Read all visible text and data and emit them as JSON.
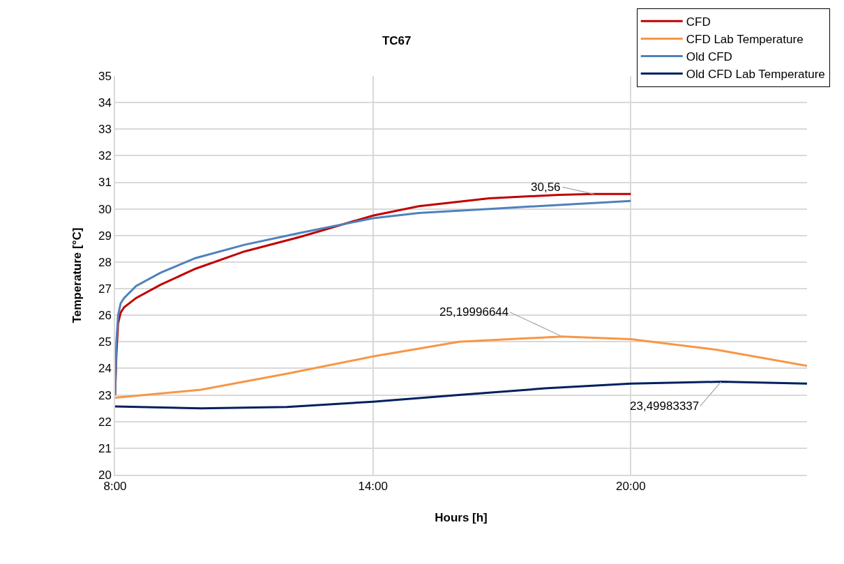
{
  "chart_data": {
    "type": "line",
    "title": "TC67",
    "xlabel": "Hours [h]",
    "ylabel": "Temperature [°C]",
    "xlim": [
      8,
      24.1
    ],
    "xticks": [
      {
        "value": 8,
        "label": "8:00"
      },
      {
        "value": 14,
        "label": "14:00"
      },
      {
        "value": 20,
        "label": "20:00"
      }
    ],
    "ylim": [
      20,
      35
    ],
    "yticks": [
      20,
      21,
      22,
      23,
      24,
      25,
      26,
      27,
      28,
      29,
      30,
      31,
      32,
      33,
      34,
      35
    ],
    "grid": true,
    "legend": "top right",
    "marker": "none",
    "line_style": "solid",
    "series": [
      {
        "name": "CFD",
        "color": "#c00000",
        "x": [
          8,
          8.03,
          8.07,
          8.13,
          8.21,
          8.49,
          9.06,
          9.87,
          11.01,
          12.31,
          14,
          15.07,
          16.7,
          18.33,
          19.14,
          20
        ],
        "values": [
          23,
          24.5,
          25.7,
          26.1,
          26.3,
          26.65,
          27.15,
          27.75,
          28.4,
          28.95,
          29.75,
          30.1,
          30.4,
          30.53,
          30.56,
          30.56
        ]
      },
      {
        "name": "CFD Lab Temperature",
        "color": "#f79646",
        "x": [
          8,
          10,
          12,
          14,
          16,
          18.4,
          20,
          22,
          24.1
        ],
        "values": [
          22.9,
          23.2,
          23.8,
          24.45,
          25.0,
          25.2,
          25.1,
          24.7,
          24.1
        ]
      },
      {
        "name": "Old CFD",
        "color": "#4f81bd",
        "x": [
          8,
          8.03,
          8.07,
          8.13,
          8.21,
          8.49,
          9.06,
          9.87,
          11.01,
          12.31,
          14,
          15.07,
          16.7,
          18.33,
          20
        ],
        "values": [
          23,
          25,
          26.0,
          26.45,
          26.65,
          27.1,
          27.6,
          28.15,
          28.65,
          29.1,
          29.65,
          29.85,
          30.0,
          30.15,
          30.3
        ]
      },
      {
        "name": "Old CFD Lab Temperature",
        "color": "#002060",
        "x": [
          8,
          10,
          12,
          14,
          16,
          18,
          20,
          22.1,
          24.1
        ],
        "values": [
          22.57,
          22.5,
          22.55,
          22.75,
          23.0,
          23.25,
          23.43,
          23.5,
          23.43
        ]
      }
    ],
    "annotations": [
      {
        "text": "30,56",
        "x": 19.14,
        "y": 30.56
      },
      {
        "text": "25,19996644",
        "x": 18.4,
        "y": 25.2
      },
      {
        "text": "23,49983337",
        "x": 22.1,
        "y": 23.5
      }
    ]
  }
}
